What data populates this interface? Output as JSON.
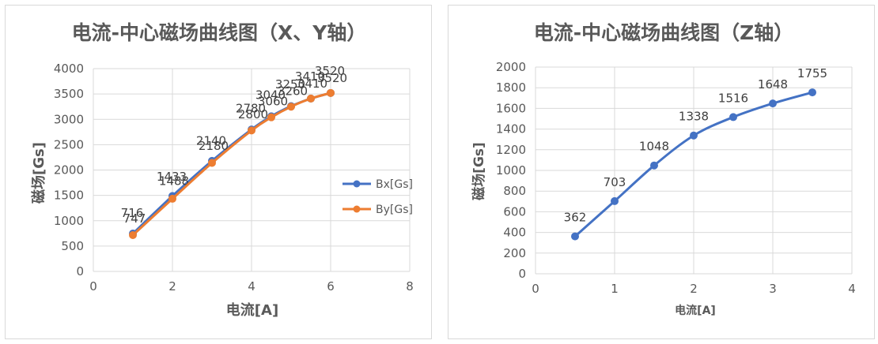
{
  "chart_data": [
    {
      "type": "scatter",
      "title": "电流-中心磁场曲线图（X、Y轴）",
      "xlabel": "电流[A]",
      "ylabel": "磁场[Gs]",
      "xlim": [
        0,
        8
      ],
      "ylim": [
        0,
        4000
      ],
      "xticks": [
        "0",
        "2",
        "4",
        "6",
        "8"
      ],
      "yticks": [
        "0",
        "500",
        "1000",
        "1500",
        "2000",
        "2500",
        "3000",
        "3500",
        "4000"
      ],
      "grid": "horizontal",
      "legend_position": "right",
      "series": [
        {
          "name": "Bx[Gs]",
          "color": "#4472c4",
          "x": [
            1,
            2,
            3,
            4,
            4.5,
            5,
            5.5,
            6
          ],
          "y": [
            747,
            1488,
            2180,
            2800,
            3060,
            3260,
            3410,
            3520
          ],
          "labels": [
            "747",
            "1488",
            "2180",
            "2800",
            "3060",
            "3260",
            "3410",
            "3520"
          ]
        },
        {
          "name": "By[Gs]",
          "color": "#ed7d31",
          "x": [
            1,
            2,
            3,
            4,
            4.5,
            5,
            5.5,
            6
          ],
          "y": [
            716,
            1433,
            2140,
            2780,
            3040,
            3250,
            3410,
            3520
          ],
          "labels": [
            "716",
            "1433",
            "2140",
            "2780",
            "3040",
            "3250",
            "3410",
            "3520"
          ]
        }
      ]
    },
    {
      "type": "scatter",
      "title": "电流-中心磁场曲线图（Z轴）",
      "xlabel": "电流[A]",
      "ylabel": "磁场[Gs]",
      "xlim": [
        0,
        4
      ],
      "ylim": [
        0,
        2000
      ],
      "xticks": [
        "0",
        "1",
        "2",
        "3",
        "4"
      ],
      "yticks": [
        "0",
        "200",
        "400",
        "600",
        "800",
        "1000",
        "1200",
        "1400",
        "1600",
        "1800",
        "2000"
      ],
      "grid": "horizontal",
      "series": [
        {
          "color": "#4472c4",
          "x": [
            0.5,
            1,
            1.5,
            2,
            2.5,
            3,
            3.5
          ],
          "y": [
            362,
            703,
            1048,
            1338,
            1516,
            1648,
            1755
          ],
          "labels": [
            "362",
            "703",
            "1048",
            "1338",
            "1516",
            "1648",
            "1755"
          ]
        }
      ]
    }
  ]
}
